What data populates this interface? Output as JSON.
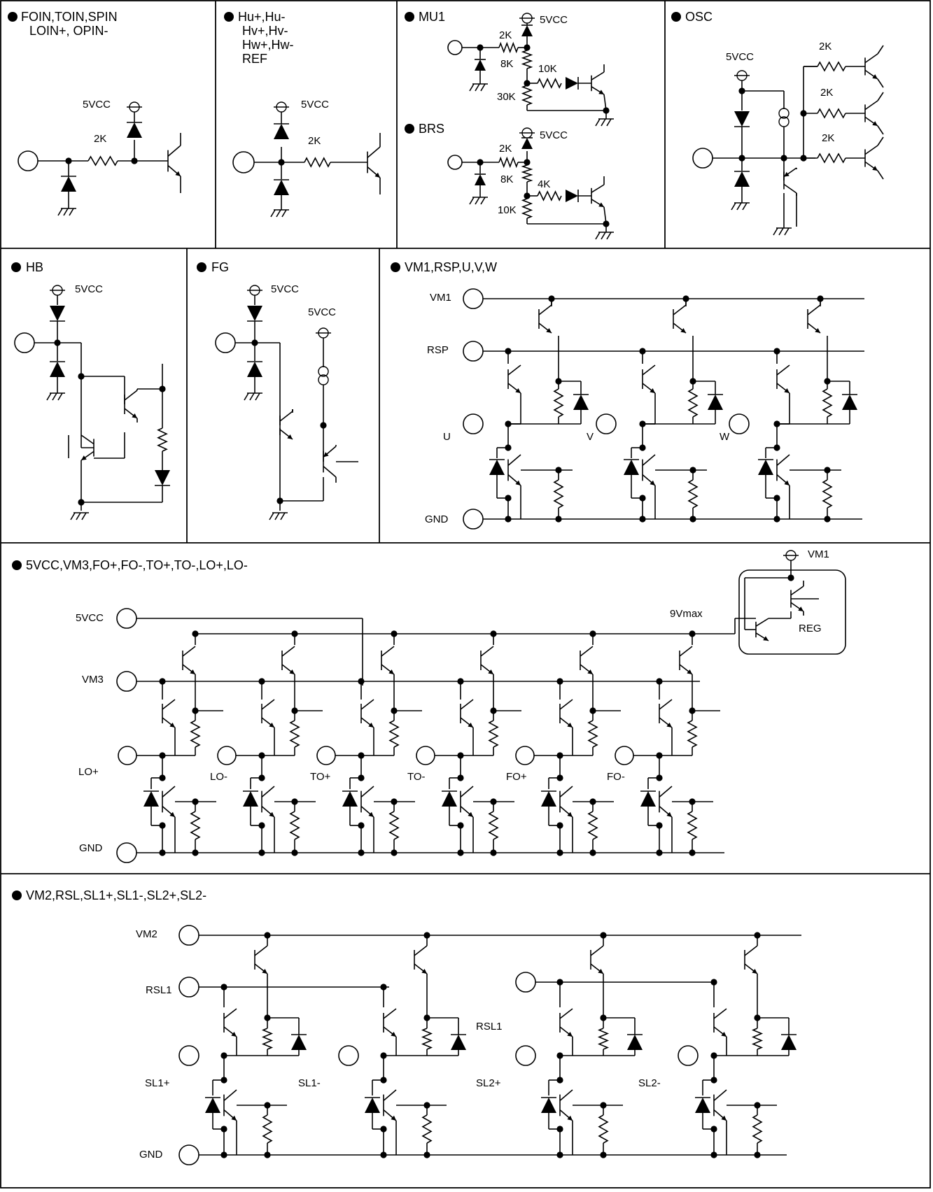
{
  "panels": {
    "foin": {
      "title": "FOIN,TOIN,SPIN",
      "title2": "LOIN+, OPIN-",
      "vcc": "5VCC",
      "r": "2K"
    },
    "hu": {
      "title": "Hu+,Hu-",
      "title2": "Hv+,Hv-",
      "title3": "Hw+,Hw-",
      "title4": "REF",
      "vcc": "5VCC",
      "r": "2K"
    },
    "mu1": {
      "title": "MU1",
      "vcc": "5VCC",
      "r1": "2K",
      "r2": "8K",
      "r3": "10K",
      "r4": "30K"
    },
    "brs": {
      "title": "BRS",
      "vcc": "5VCC",
      "r1": "2K",
      "r2": "8K",
      "r3": "4K",
      "r4": "10K"
    },
    "osc": {
      "title": "OSC",
      "vcc": "5VCC",
      "r1": "2K",
      "r2": "2K",
      "r3": "2K"
    },
    "hb": {
      "title": "HB",
      "vcc": "5VCC"
    },
    "fg": {
      "title": "FG",
      "vcc1": "5VCC",
      "vcc2": "5VCC"
    },
    "vm1": {
      "title": "VM1,RSP,U,V,W",
      "vm": "VM1",
      "rsp": "RSP",
      "u": "U",
      "v": "V",
      "w": "W",
      "gnd": "GND"
    },
    "vm3": {
      "title": "5VCC,VM3,FO+,FO-,TO+,TO-,LO+,LO-",
      "vcc": "5VCC",
      "vm3": "VM3",
      "gnd": "GND",
      "vm1": "VM1",
      "vmax": "9Vmax",
      "reg": "REG",
      "outs": [
        "LO+",
        "LO-",
        "TO+",
        "TO-",
        "FO+",
        "FO-"
      ]
    },
    "vm2": {
      "title": "VM2,RSL,SL1+,SL1-,SL2+,SL2-",
      "vm2": "VM2",
      "rsl1": "RSL1",
      "rsl1b": "RSL1",
      "gnd": "GND",
      "outs": [
        "SL1+",
        "SL1-",
        "SL2+",
        "SL2-"
      ]
    }
  }
}
